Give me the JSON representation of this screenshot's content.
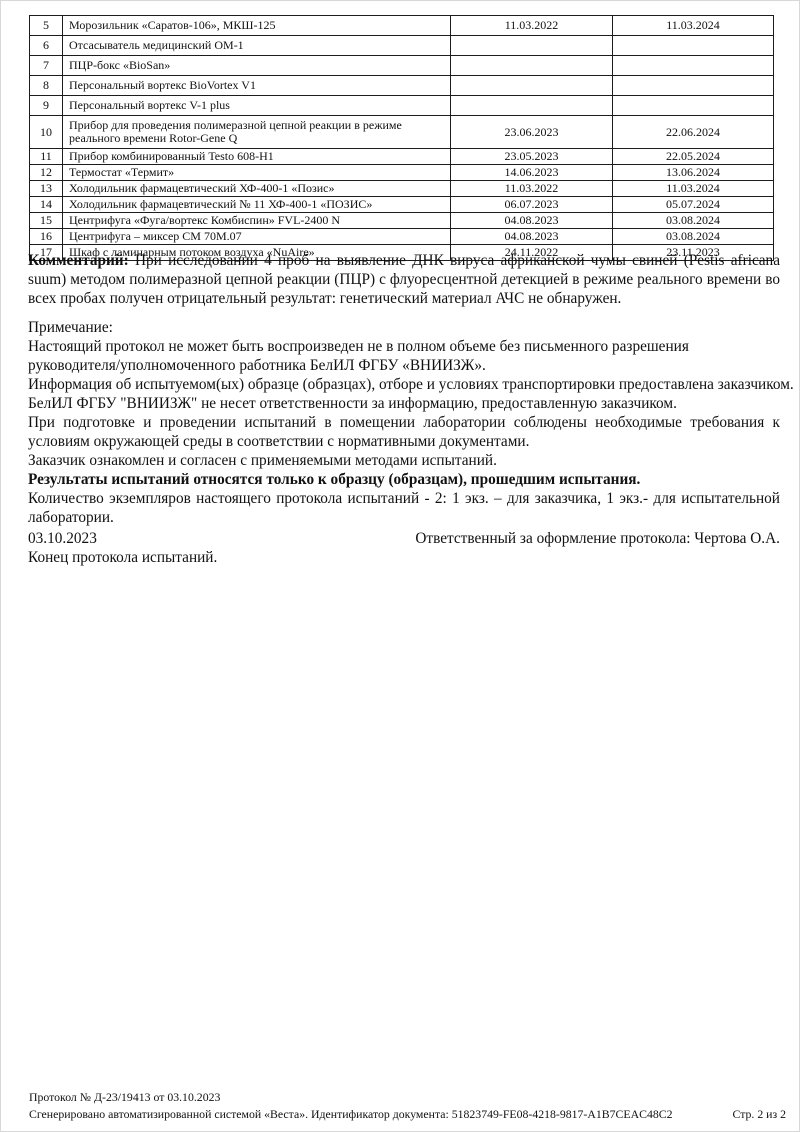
{
  "equipment_table": {
    "rows": [
      {
        "num": "5",
        "name": "Морозильник «Саратов-106», МКШ-125",
        "date1": "11.03.2022",
        "date2": "11.03.2024"
      },
      {
        "num": "6",
        "name": "Отсасыватель медицинский ОМ-1",
        "date1": "",
        "date2": ""
      },
      {
        "num": "7",
        "name": "ПЦР-бокс «BioSan»",
        "date1": "",
        "date2": ""
      },
      {
        "num": "8",
        "name": "Персональный вортекс BioVortex V1",
        "date1": "",
        "date2": ""
      },
      {
        "num": "9",
        "name": "Персональный вортекс V-1 plus",
        "date1": "",
        "date2": ""
      },
      {
        "num": "10",
        "name": "Прибор для проведения полимеразной цепной реакции в режиме реального времени Rotor-Gene Q",
        "date1": "23.06.2023",
        "date2": "22.06.2024"
      },
      {
        "num": "11",
        "name": "Прибор комбинированный Testo 608-H1",
        "date1": "23.05.2023",
        "date2": "22.05.2024"
      },
      {
        "num": "12",
        "name": "Термостат «Термит»",
        "date1": "14.06.2023",
        "date2": "13.06.2024"
      },
      {
        "num": "13",
        "name": "Холодильник фармацевтический ХФ-400-1 «Позис»",
        "date1": "11.03.2022",
        "date2": "11.03.2024"
      },
      {
        "num": "14",
        "name": "Холодильник фармацевтический № 11 ХФ-400-1 «ПОЗИС»",
        "date1": "06.07.2023",
        "date2": "05.07.2024"
      },
      {
        "num": "15",
        "name": "Центрифуга «Фуга/вортекс Комбиспин» FVL-2400 N",
        "date1": "04.08.2023",
        "date2": "03.08.2024"
      },
      {
        "num": "16",
        "name": "Центрифуга – миксер СМ 70М.07",
        "date1": "04.08.2023",
        "date2": "03.08.2024"
      },
      {
        "num": "17",
        "name": "Шкаф с ламинарным потоком воздуха «NuAire»",
        "date1": "24.11.2022",
        "date2": "23.11.2023"
      }
    ]
  },
  "comment": {
    "label": "Комментарий:",
    "text": " При исследовании 4 проб на выявление ДНК вируса африканской чумы свиней (Pestis africana suum) методом полимеразной цепной реакции (ПЦР) с флуоресцентной детекцией в режиме реального времени во всех пробах получен отрицательный результат: генетический материал АЧС не обнаружен."
  },
  "note": {
    "label": "Примечание:",
    "lines": [
      {
        "text": "Настоящий протокол не может быть воспроизведен не в полном объеме без письменного разрешения",
        "bold": false,
        "justify": false
      },
      {
        "text": "руководителя/уполномоченного работника БелИЛ ФГБУ «ВНИИЗЖ».",
        "bold": false,
        "justify": false
      },
      {
        "text": "Информация об испытуемом(ых) образце (образцах), отборе и условиях транспортировки предоставлена заказчиком.",
        "bold": false,
        "justify": false
      },
      {
        "text": "БелИЛ ФГБУ \"ВНИИЗЖ\" не несет ответственности за информацию, предоставленную заказчиком.",
        "bold": false,
        "justify": false
      },
      {
        "text": "При подготовке и проведении испытаний в помещении лаборатории соблюдены необходимые требования к",
        "bold": false,
        "justify": true
      },
      {
        "text": "условиям окружающей среды в соответствии с нормативными документами.",
        "bold": false,
        "justify": false
      },
      {
        "text": "Заказчик ознакомлен и согласен с применяемыми методами испытаний.",
        "bold": false,
        "justify": false
      },
      {
        "text": "Результаты испытаний относятся только к образцу (образцам), прошедшим испытания.",
        "bold": true,
        "justify": false
      },
      {
        "text": "Количество экземпляров настоящего протокола испытаний - 2: 1 экз. – для заказчика, 1 экз.- для испытательной",
        "bold": false,
        "justify": true
      },
      {
        "text": "лаборатории.",
        "bold": false,
        "justify": false
      }
    ]
  },
  "signoff": {
    "date": "03.10.2023",
    "responsible": "Ответственный за оформление протокола: Чертова О.А.",
    "end_line": "Конец протокола испытаний."
  },
  "footer": {
    "protocol_line": "Протокол № Д-23/19413 от 03.10.2023",
    "generated_line": "Сгенерировано автоматизированной системой «Веста». Идентификатор документа: 51823749-FE08-4218-9817-A1B7CEAC48C2",
    "page_indicator": "Стр. 2 из 2"
  }
}
